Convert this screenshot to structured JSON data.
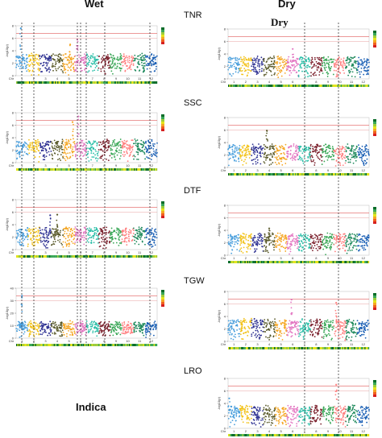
{
  "headers": {
    "wet": "Wet",
    "dry": "Dry",
    "dry_inset": "Dry",
    "population": "Indica"
  },
  "traits": [
    "TNR",
    "SSC",
    "DTF",
    "TGW",
    "LRO"
  ],
  "chart_data": {
    "type": "scatter",
    "subtype": "manhattan",
    "chromosomes": [
      "1",
      "2",
      "3",
      "4",
      "5",
      "6",
      "7",
      "8",
      "9",
      "10",
      "11",
      "12"
    ],
    "chr_label": "Chr",
    "ylabel": "-log10(p)",
    "chromosome_colors": [
      "#4a9fdc",
      "#f2c21a",
      "#2e3192",
      "#5a5a2a",
      "#f5a623",
      "#e377c2",
      "#2bbfa8",
      "#7a1f2b",
      "#3aa757",
      "#ff7f7f",
      "#1f8a5c",
      "#1a5fb4"
    ],
    "threshold_colors": {
      "upper": "#e05a5a",
      "lower": "#e8a0a0"
    },
    "density_legend_colors": [
      "#0b6d2a",
      "#3aa757",
      "#9ccc3a",
      "#e4e41a",
      "#f5a623",
      "#f06020",
      "#d62020"
    ],
    "panels": [
      {
        "column": "wet",
        "trait": "TNR",
        "ymax": 8,
        "yticks": [
          0,
          2,
          4,
          6,
          8
        ],
        "base": 3.0,
        "threshold": [
          6.8,
          6.0
        ],
        "peaks": [
          {
            "chr": 1,
            "pos": 0.4,
            "value": 7.6
          },
          {
            "chr": 5,
            "pos": 0.6,
            "value": 5.0
          },
          {
            "chr": 6,
            "pos": 0.2,
            "value": 5.8
          }
        ]
      },
      {
        "column": "wet",
        "trait": "SSC",
        "ymax": 8,
        "yticks": [
          0,
          2,
          4,
          6,
          8
        ],
        "base": 3.2,
        "threshold": [
          6.8,
          6.0
        ],
        "peaks": [
          {
            "chr": 5,
            "pos": 0.8,
            "value": 6.5
          },
          {
            "chr": 6,
            "pos": 0.3,
            "value": 7.4
          }
        ]
      },
      {
        "column": "wet",
        "trait": "DTF",
        "ymax": 8,
        "yticks": [
          0,
          2,
          4,
          6,
          8
        ],
        "base": 3.1,
        "threshold": [
          6.8,
          6.0
        ],
        "peaks": [
          {
            "chr": 4,
            "pos": 0.5,
            "value": 5.6
          },
          {
            "chr": 3,
            "pos": 0.9,
            "value": 5.5
          }
        ]
      },
      {
        "column": "wet",
        "trait": "TGW",
        "ymax": 40,
        "yticks": [
          0,
          10,
          20,
          30,
          40
        ],
        "base": 2.2,
        "threshold": [
          6.8,
          6.0
        ],
        "peaks": [
          {
            "chr": 1,
            "pos": 0.5,
            "value": 34.0
          },
          {
            "chr": 1,
            "pos": 0.52,
            "value": 12.0
          }
        ]
      },
      {
        "column": "dry",
        "trait": "TNR",
        "ymax": 8,
        "yticks": [
          0,
          2,
          4,
          6,
          8
        ],
        "base": 3.1,
        "threshold": [
          6.8,
          6.0
        ],
        "peaks": [
          {
            "chr": 6,
            "pos": 0.5,
            "value": 4.8
          }
        ]
      },
      {
        "column": "dry",
        "trait": "SSC",
        "ymax": 8,
        "yticks": [
          0,
          2,
          4,
          6,
          8
        ],
        "base": 3.3,
        "threshold": [
          6.8,
          6.0
        ],
        "peaks": [
          {
            "chr": 4,
            "pos": 0.3,
            "value": 5.9
          }
        ]
      },
      {
        "column": "dry",
        "trait": "DTF",
        "ymax": 8,
        "yticks": [
          0,
          2,
          4,
          6,
          8
        ],
        "base": 3.0,
        "threshold": [
          6.8,
          6.0
        ],
        "peaks": [
          {
            "chr": 4,
            "pos": 0.5,
            "value": 4.3
          }
        ]
      },
      {
        "column": "dry",
        "trait": "TGW",
        "ymax": 8,
        "yticks": [
          0,
          2,
          4,
          6,
          8
        ],
        "base": 3.1,
        "threshold": [
          6.8,
          6.0
        ],
        "peaks": [
          {
            "chr": 6,
            "pos": 0.4,
            "value": 6.7
          },
          {
            "chr": 10,
            "pos": 0.2,
            "value": 6.2
          }
        ]
      },
      {
        "column": "dry",
        "trait": "LRO",
        "ymax": 8,
        "yticks": [
          0,
          2,
          4,
          6,
          8
        ],
        "base": 3.2,
        "threshold": [
          6.8,
          6.0
        ],
        "peaks": [
          {
            "chr": 10,
            "pos": 0.2,
            "value": 7.0
          },
          {
            "chr": 1,
            "pos": 0.1,
            "value": 4.8
          }
        ]
      }
    ]
  }
}
